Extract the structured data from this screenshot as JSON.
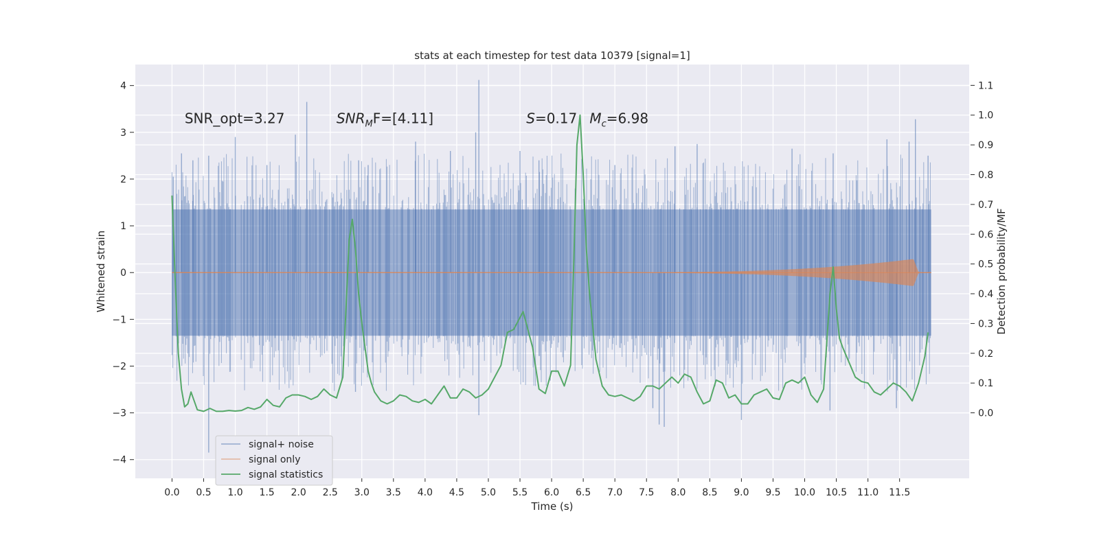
{
  "chart_data": {
    "type": "line",
    "title": "stats at each timestep for test data 10379 [signal=1]",
    "xlabel": "Time (s)",
    "ylabel": "Whitened strain",
    "y2label": "Detection probability/MF",
    "xlim": [
      -0.58,
      12.6
    ],
    "ylim": [
      -4.4,
      4.45
    ],
    "y2lim": [
      -0.22,
      1.17
    ],
    "xticks": [
      0.0,
      0.5,
      1.0,
      1.5,
      2.0,
      2.5,
      3.0,
      3.5,
      4.0,
      4.5,
      5.0,
      5.5,
      6.0,
      6.5,
      7.0,
      7.5,
      8.0,
      8.5,
      9.0,
      9.5,
      10.0,
      10.5,
      11.0,
      11.5
    ],
    "xtick_labels": [
      "0.0",
      "0.5",
      "1.0",
      "1.5",
      "2.0",
      "2.5",
      "3.0",
      "3.5",
      "4.0",
      "4.5",
      "5.0",
      "5.5",
      "6.0",
      "6.5",
      "7.0",
      "7.5",
      "8.0",
      "8.5",
      "9.0",
      "9.5",
      "10.0",
      "10.5",
      "11.0",
      "11.5"
    ],
    "yticks": [
      -4,
      -3,
      -2,
      -1,
      0,
      1,
      2,
      3,
      4
    ],
    "ytick_labels": [
      "−4",
      "−3",
      "−2",
      "−1",
      "0",
      "1",
      "2",
      "3",
      "4"
    ],
    "y2ticks": [
      0.0,
      0.1,
      0.2,
      0.3,
      0.4,
      0.5,
      0.6,
      0.7,
      0.8,
      0.9,
      1.0,
      1.1
    ],
    "y2tick_labels": [
      "0.0",
      "0.1",
      "0.2",
      "0.3",
      "0.4",
      "0.5",
      "0.6",
      "0.7",
      "0.8",
      "0.9",
      "1.0",
      "1.1"
    ],
    "grid": true,
    "legend_position": "lower-left",
    "annotations": [
      {
        "text": "SNR_opt=3.27",
        "x": 0.2,
        "y": 3.3
      },
      {
        "text_main": "SNR",
        "text_sub": "M",
        "text_rest": "F=[4.11]",
        "x": 2.6,
        "y": 3.3
      },
      {
        "text_main": "S",
        "text_rest": "=0.17",
        "x": 5.6,
        "y": 3.3
      },
      {
        "text_main": "M",
        "text_sub": "c",
        "text_rest": "=6.98",
        "x": 6.6,
        "y": 3.3
      }
    ],
    "series": [
      {
        "name": "signal+ noise",
        "color": "#4c72b0",
        "axis": "left",
        "t_start": 0.0,
        "t_end": 12.0,
        "envelope_upper": 1.35,
        "envelope_lower": -1.35,
        "spikes": [
          [
            0.02,
            2.05
          ],
          [
            0.15,
            2.55
          ],
          [
            0.33,
            2.4
          ],
          [
            0.58,
            2.5
          ],
          [
            1.0,
            2.9
          ],
          [
            1.5,
            2.3
          ],
          [
            1.95,
            2.95
          ],
          [
            2.13,
            3.65
          ],
          [
            2.95,
            2.4
          ],
          [
            3.1,
            2.3
          ],
          [
            3.85,
            2.8
          ],
          [
            4.4,
            2.6
          ],
          [
            4.8,
            3.0
          ],
          [
            4.85,
            4.12
          ],
          [
            5.5,
            2.6
          ],
          [
            5.8,
            2.4
          ],
          [
            7.0,
            2.3
          ],
          [
            7.95,
            2.7
          ],
          [
            8.3,
            2.75
          ],
          [
            9.8,
            2.65
          ],
          [
            10.45,
            2.55
          ],
          [
            11.3,
            2.85
          ],
          [
            11.65,
            2.8
          ],
          [
            11.75,
            3.28
          ],
          [
            11.95,
            2.5
          ],
          [
            0.58,
            -3.85
          ],
          [
            4.85,
            -3.05
          ],
          [
            7.7,
            -3.25
          ],
          [
            7.78,
            -3.3
          ],
          [
            9.0,
            -3.15
          ],
          [
            10.4,
            -2.95
          ],
          [
            11.45,
            -2.9
          ],
          [
            2.9,
            -2.55
          ],
          [
            7.6,
            -2.9
          ]
        ]
      },
      {
        "name": "signal only",
        "color": "#dd8452",
        "axis": "left",
        "chirp_start": 7.5,
        "chirp_peak_time": 11.72,
        "chirp_peak_amplitude": 0.28,
        "t_end": 12.0
      },
      {
        "name": "signal statistics",
        "color": "#55a868",
        "axis": "right",
        "x": [
          0.0,
          0.05,
          0.1,
          0.15,
          0.2,
          0.25,
          0.3,
          0.35,
          0.4,
          0.5,
          0.6,
          0.7,
          0.8,
          0.9,
          1.0,
          1.1,
          1.2,
          1.3,
          1.4,
          1.5,
          1.6,
          1.7,
          1.8,
          1.9,
          2.0,
          2.1,
          2.2,
          2.3,
          2.4,
          2.5,
          2.6,
          2.7,
          2.8,
          2.85,
          2.9,
          2.95,
          3.0,
          3.05,
          3.1,
          3.15,
          3.2,
          3.3,
          3.4,
          3.5,
          3.6,
          3.7,
          3.8,
          3.9,
          4.0,
          4.1,
          4.2,
          4.3,
          4.4,
          4.5,
          4.6,
          4.7,
          4.8,
          4.9,
          5.0,
          5.1,
          5.2,
          5.3,
          5.4,
          5.5,
          5.55,
          5.6,
          5.7,
          5.8,
          5.9,
          6.0,
          6.1,
          6.2,
          6.3,
          6.35,
          6.4,
          6.45,
          6.5,
          6.55,
          6.6,
          6.7,
          6.8,
          6.9,
          7.0,
          7.1,
          7.2,
          7.3,
          7.4,
          7.5,
          7.6,
          7.7,
          7.8,
          7.9,
          8.0,
          8.1,
          8.2,
          8.3,
          8.4,
          8.5,
          8.6,
          8.7,
          8.8,
          8.9,
          9.0,
          9.1,
          9.2,
          9.3,
          9.4,
          9.5,
          9.6,
          9.7,
          9.8,
          9.9,
          10.0,
          10.1,
          10.2,
          10.3,
          10.4,
          10.45,
          10.5,
          10.55,
          10.6,
          10.7,
          10.8,
          10.9,
          11.0,
          11.1,
          11.2,
          11.3,
          11.4,
          11.5,
          11.6,
          11.7,
          11.8,
          11.9,
          11.95
        ],
        "y": [
          0.73,
          0.45,
          0.2,
          0.08,
          0.02,
          0.03,
          0.07,
          0.04,
          0.01,
          0.005,
          0.015,
          0.005,
          0.005,
          0.008,
          0.006,
          0.008,
          0.018,
          0.012,
          0.02,
          0.045,
          0.025,
          0.02,
          0.05,
          0.06,
          0.06,
          0.055,
          0.045,
          0.055,
          0.08,
          0.06,
          0.05,
          0.12,
          0.58,
          0.65,
          0.55,
          0.4,
          0.3,
          0.22,
          0.14,
          0.1,
          0.07,
          0.04,
          0.03,
          0.04,
          0.06,
          0.055,
          0.04,
          0.035,
          0.045,
          0.03,
          0.06,
          0.09,
          0.05,
          0.05,
          0.08,
          0.07,
          0.05,
          0.06,
          0.08,
          0.12,
          0.16,
          0.27,
          0.28,
          0.32,
          0.34,
          0.3,
          0.22,
          0.08,
          0.065,
          0.14,
          0.14,
          0.09,
          0.16,
          0.5,
          0.9,
          1.0,
          0.8,
          0.55,
          0.4,
          0.18,
          0.09,
          0.06,
          0.055,
          0.06,
          0.05,
          0.04,
          0.055,
          0.09,
          0.09,
          0.08,
          0.1,
          0.12,
          0.1,
          0.13,
          0.12,
          0.07,
          0.03,
          0.04,
          0.11,
          0.1,
          0.05,
          0.06,
          0.03,
          0.03,
          0.06,
          0.07,
          0.08,
          0.05,
          0.045,
          0.1,
          0.11,
          0.1,
          0.12,
          0.06,
          0.035,
          0.08,
          0.4,
          0.49,
          0.35,
          0.25,
          0.22,
          0.17,
          0.12,
          0.105,
          0.1,
          0.07,
          0.06,
          0.08,
          0.1,
          0.09,
          0.07,
          0.04,
          0.1,
          0.19,
          0.27
        ]
      }
    ]
  }
}
